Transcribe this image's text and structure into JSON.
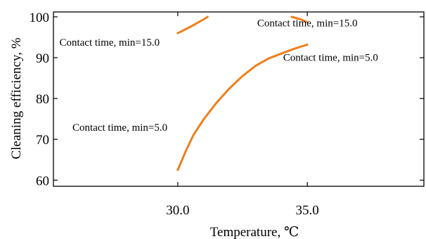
{
  "chart_data": {
    "type": "line",
    "title": "",
    "xlabel": "Temperature, ℃",
    "ylabel": "Cleaning efficiency, %",
    "xlim": [
      25.2,
      39.5
    ],
    "ylim": [
      58.5,
      101.2
    ],
    "x_ticks": [
      30.0,
      35.0
    ],
    "x_tick_labels": [
      "30.0",
      "35.0"
    ],
    "y_ticks": [
      60,
      70,
      80,
      90,
      100
    ],
    "y_tick_labels": [
      "60",
      "70",
      "80",
      "90",
      "100"
    ],
    "grid": false,
    "legend": "none",
    "line_color": "#f07f1b",
    "series": [
      {
        "x": [
          30.0,
          30.3,
          30.6,
          31.0,
          31.5,
          32.0,
          32.5,
          33.0,
          33.5,
          34.0,
          34.5,
          35.0
        ],
        "y": [
          62.5,
          67.0,
          71.0,
          74.9,
          79.0,
          82.5,
          85.5,
          88.0,
          89.8,
          91.0,
          92.2,
          93.2
        ]
      },
      {
        "x": [
          30.0,
          30.5,
          31.0,
          31.15
        ],
        "y": [
          96.0,
          97.6,
          99.4,
          100.0
        ]
      },
      {
        "x": [
          34.4,
          34.7,
          35.0
        ],
        "y": [
          100.0,
          99.5,
          98.7
        ]
      }
    ],
    "annotations": [
      {
        "text": "Contact time, min=15.0",
        "x": 29.3,
        "y": 92.9,
        "anchor": "end"
      },
      {
        "text": "Contact time, min=15.0",
        "x": 35.0,
        "y": 97.7,
        "anchor": "middle"
      },
      {
        "text": "Contact time, min=5.0",
        "x": 35.9,
        "y": 89.2,
        "anchor": "middle"
      },
      {
        "text": "Contact time, min=5.0",
        "x": 29.6,
        "y": 72.1,
        "anchor": "end"
      }
    ]
  }
}
